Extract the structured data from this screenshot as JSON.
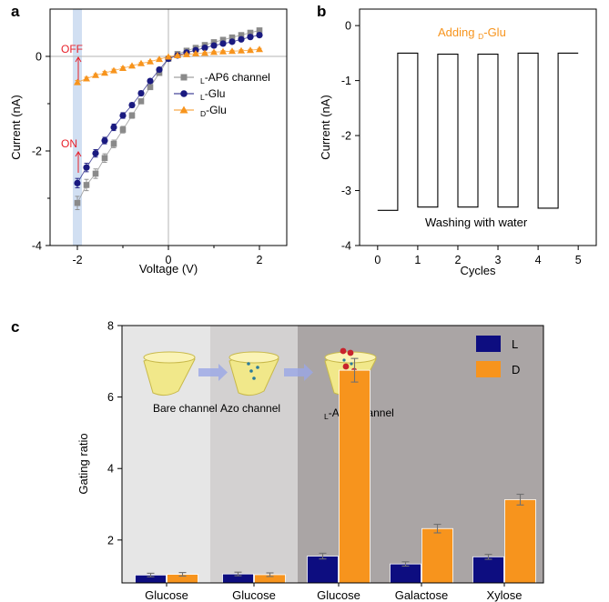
{
  "chart_data": [
    {
      "panel": "a",
      "type": "scatter",
      "xlabel": "Voltage (V)",
      "ylabel": "Current (nA)",
      "xlim": [
        -2.6,
        2.6
      ],
      "ylim": [
        -4,
        1
      ],
      "xticks": [
        "-2",
        "0",
        "2"
      ],
      "yticks": [
        "-4",
        "-2",
        "0"
      ],
      "highlight_band_x": [
        -2.1,
        -1.9
      ],
      "legend": [
        {
          "pre": "",
          "sub": "L",
          "post": "-AP6 channel"
        },
        {
          "pre": "",
          "sub": "L",
          "post": "-Glu"
        },
        {
          "pre": "",
          "sub": "D",
          "post": "-Glu"
        }
      ],
      "annotations": {
        "off": "OFF",
        "on": "ON"
      },
      "series": [
        {
          "name": "L-AP6 channel",
          "color": "#8a8a8a",
          "marker": "square",
          "x": [
            -2.0,
            -1.8,
            -1.6,
            -1.4,
            -1.2,
            -1.0,
            -0.8,
            -0.6,
            -0.4,
            -0.2,
            0.0,
            0.2,
            0.4,
            0.6,
            0.8,
            1.0,
            1.2,
            1.4,
            1.6,
            1.8,
            2.0
          ],
          "y": [
            -3.1,
            -2.72,
            -2.48,
            -2.15,
            -1.85,
            -1.55,
            -1.25,
            -0.95,
            -0.65,
            -0.35,
            -0.05,
            0.05,
            0.12,
            0.18,
            0.24,
            0.3,
            0.35,
            0.4,
            0.45,
            0.5,
            0.55
          ],
          "err": [
            0.14,
            0.12,
            0.1,
            0.09,
            0.08,
            0.07,
            0.06,
            0.05,
            0.05,
            0.04,
            0.03,
            0.03,
            0.03,
            0.03,
            0.03,
            0.03,
            0.03,
            0.03,
            0.04,
            0.04,
            0.04
          ]
        },
        {
          "name": "L-Glu",
          "color": "#1a1a80",
          "marker": "circle",
          "x": [
            -2.0,
            -1.8,
            -1.6,
            -1.4,
            -1.2,
            -1.0,
            -0.8,
            -0.6,
            -0.4,
            -0.2,
            0.0,
            0.2,
            0.4,
            0.6,
            0.8,
            1.0,
            1.2,
            1.4,
            1.6,
            1.8,
            2.0
          ],
          "y": [
            -2.68,
            -2.35,
            -2.05,
            -1.78,
            -1.5,
            -1.25,
            -1.03,
            -0.78,
            -0.52,
            -0.28,
            -0.05,
            0.02,
            0.08,
            0.13,
            0.18,
            0.23,
            0.27,
            0.31,
            0.36,
            0.41,
            0.45
          ],
          "err": [
            0.1,
            0.09,
            0.08,
            0.07,
            0.07,
            0.06,
            0.05,
            0.05,
            0.04,
            0.04,
            0.03,
            0.03,
            0.03,
            0.03,
            0.03,
            0.03,
            0.03,
            0.03,
            0.03,
            0.04,
            0.04
          ]
        },
        {
          "name": "D-Glu",
          "color": "#f7941d",
          "marker": "triangle",
          "x": [
            -2.0,
            -1.8,
            -1.6,
            -1.4,
            -1.2,
            -1.0,
            -0.8,
            -0.6,
            -0.4,
            -0.2,
            0.0,
            0.2,
            0.4,
            0.6,
            0.8,
            1.0,
            1.2,
            1.4,
            1.6,
            1.8,
            2.0
          ],
          "y": [
            -0.55,
            -0.47,
            -0.4,
            -0.35,
            -0.3,
            -0.25,
            -0.2,
            -0.15,
            -0.11,
            -0.06,
            -0.01,
            0.02,
            0.04,
            0.06,
            0.07,
            0.09,
            0.1,
            0.11,
            0.12,
            0.13,
            0.15
          ],
          "err": [
            0.04,
            0.03,
            0.03,
            0.03,
            0.03,
            0.03,
            0.02,
            0.02,
            0.02,
            0.02,
            0.02,
            0.02,
            0.02,
            0.02,
            0.02,
            0.02,
            0.02,
            0.02,
            0.02,
            0.02,
            0.02
          ]
        }
      ]
    },
    {
      "panel": "b",
      "type": "line",
      "xlabel": "Cycles",
      "ylabel": "Current (nA)",
      "xlim": [
        -0.45,
        5.45
      ],
      "ylim": [
        -4,
        0.3
      ],
      "xticks": [
        "0",
        "1",
        "2",
        "3",
        "4",
        "5"
      ],
      "yticks": [
        "-4",
        "-3",
        "-2",
        "-1",
        "0"
      ],
      "color": "#000000",
      "annotation_top": {
        "pre": "Adding ",
        "sub": "D",
        "post": "-Glu",
        "color": "#f7941d"
      },
      "annotation_bottom": "Washing with water",
      "x": [
        0.0,
        0.5,
        0.5,
        1.0,
        1.0,
        1.5,
        1.5,
        2.0,
        2.0,
        2.5,
        2.5,
        3.0,
        3.0,
        3.5,
        3.5,
        4.0,
        4.0,
        4.5,
        4.5,
        5.0
      ],
      "y": [
        -3.36,
        -3.36,
        -0.5,
        -0.5,
        -3.3,
        -3.3,
        -0.52,
        -0.52,
        -3.3,
        -3.3,
        -0.52,
        -0.52,
        -3.3,
        -3.3,
        -0.5,
        -0.5,
        -3.32,
        -3.32,
        -0.5,
        -0.5
      ]
    },
    {
      "panel": "c",
      "type": "bar",
      "ylabel": "Gating ratio",
      "ylim": [
        0.8,
        8
      ],
      "yticks": [
        "2",
        "4",
        "6",
        "8"
      ],
      "categories": [
        "Glucose",
        "Glucose",
        "Glucose",
        "Galactose",
        "Xylose"
      ],
      "regions": [
        "Bare channel",
        "Azo channel",
        {
          "pre": "",
          "sub": "L",
          "post": "-AP6 channel"
        }
      ],
      "region_colors": [
        "#e6e6e6",
        "#d3d1d1",
        "#aaa5a5"
      ],
      "series": [
        {
          "name": "L",
          "color": "#0d0d80",
          "values": [
            1.02,
            1.05,
            1.55,
            1.33,
            1.53
          ],
          "err": [
            0.05,
            0.05,
            0.08,
            0.06,
            0.07
          ]
        },
        {
          "name": "D",
          "color": "#f7941d",
          "values": [
            1.04,
            1.03,
            6.75,
            2.32,
            3.13
          ],
          "err": [
            0.05,
            0.05,
            0.33,
            0.12,
            0.15
          ]
        }
      ]
    }
  ]
}
